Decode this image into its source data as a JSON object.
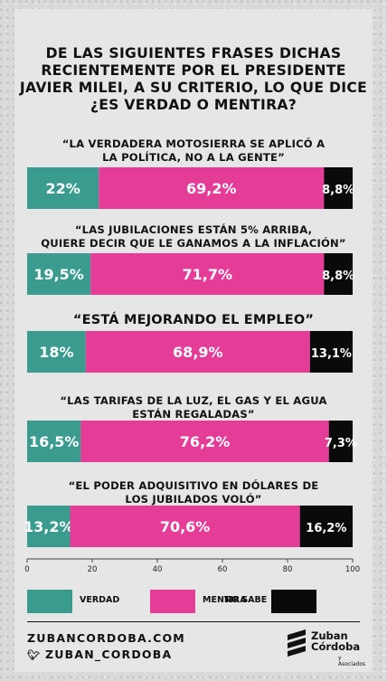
{
  "title": "DE LAS SIGUIENTES FRASES DICHAS RECIENTEMENTE POR EL PRESIDENTE JAVIER MILEI, A SU CRITERIO, LO QUE DICE ¿ES VERDAD O MENTIRA?",
  "colors": {
    "verdad": "#3a9b8e",
    "mentira": "#e53c98",
    "no_sabe": "#0a0a0a"
  },
  "chart_data": {
    "type": "bar",
    "orientation": "horizontal-stacked",
    "title": "DE LAS SIGUIENTES FRASES DICHAS RECIENTEMENTE POR EL PRESIDENTE JAVIER MILEI, A SU CRITERIO, LO QUE DICE ¿ES VERDAD O MENTIRA?",
    "categories": [
      "“LA VERDADERA MOTOSIERRA SE APLICÓ A LA POLÍTICA, NO A LA GENTE”",
      "“LAS JUBILACIONES ESTÁN 5% ARRIBA, QUIERE DECIR QUE LE GANAMOS A LA INFLACIÓN”",
      "“ESTÁ MEJORANDO EL EMPLEO”",
      "“LAS TARIFAS DE LA LUZ, EL GAS Y EL AGUA ESTÁN REGALADAS”",
      "“EL PODER ADQUISITIVO EN DÓLARES DE LOS JUBILADOS VOLÓ”"
    ],
    "series": [
      {
        "name": "VERDAD",
        "values": [
          22,
          19.5,
          18,
          16.5,
          13.2
        ],
        "labels": [
          "22%",
          "19,5%",
          "18%",
          "16,5%",
          "13,2%"
        ]
      },
      {
        "name": "MENTIRA",
        "values": [
          69.2,
          71.7,
          68.9,
          76.2,
          70.6
        ],
        "labels": [
          "69,2%",
          "71,7%",
          "68,9%",
          "76,2%",
          "70,6%"
        ]
      },
      {
        "name": "NO SABE",
        "values": [
          8.8,
          8.8,
          13.1,
          7.3,
          16.2
        ],
        "labels": [
          "8,8%",
          "8,8%",
          "13,1%",
          "7,3%",
          "16,2%"
        ]
      }
    ],
    "xlim": [
      0,
      100
    ],
    "xticks": [
      0,
      20,
      40,
      60,
      80,
      100
    ],
    "xtick_labels": [
      "0",
      "20",
      "40",
      "60",
      "80",
      "100"
    ],
    "grid": false,
    "legend": "bottom"
  },
  "questions": [
    {
      "lines": [
        "“LA VERDADERA MOTOSIERRA SE APLICÓ A",
        "LA POLÍTICA, NO A LA GENTE”"
      ]
    },
    {
      "lines": [
        "“LAS JUBILACIONES ESTÁN 5% ARRIBA,",
        "QUIERE DECIR QUE LE GANAMOS A LA INFLACIÓN”"
      ]
    },
    {
      "lines": [
        "“ESTÁ MEJORANDO EL EMPLEO”"
      ]
    },
    {
      "lines": [
        "“LAS TARIFAS DE LA LUZ, EL GAS Y EL AGUA",
        "ESTÁN REGALADAS”"
      ]
    },
    {
      "lines": [
        "“EL PODER ADQUISITIVO EN DÓLARES DE",
        "LOS JUBILADOS VOLÓ”"
      ]
    }
  ],
  "legend": {
    "verdad": "VERDAD",
    "mentira": "MENTIRA",
    "no_sabe": "NO SABE"
  },
  "footer": {
    "website": "ZUBANCORDOBA.COM",
    "twitter": "ZUBAN_CORDOBA",
    "twitter_icon": "twitter-bird-icon"
  },
  "logo": {
    "line1": "Zuban",
    "line2": "Córdoba",
    "sub": "y Asociados"
  }
}
